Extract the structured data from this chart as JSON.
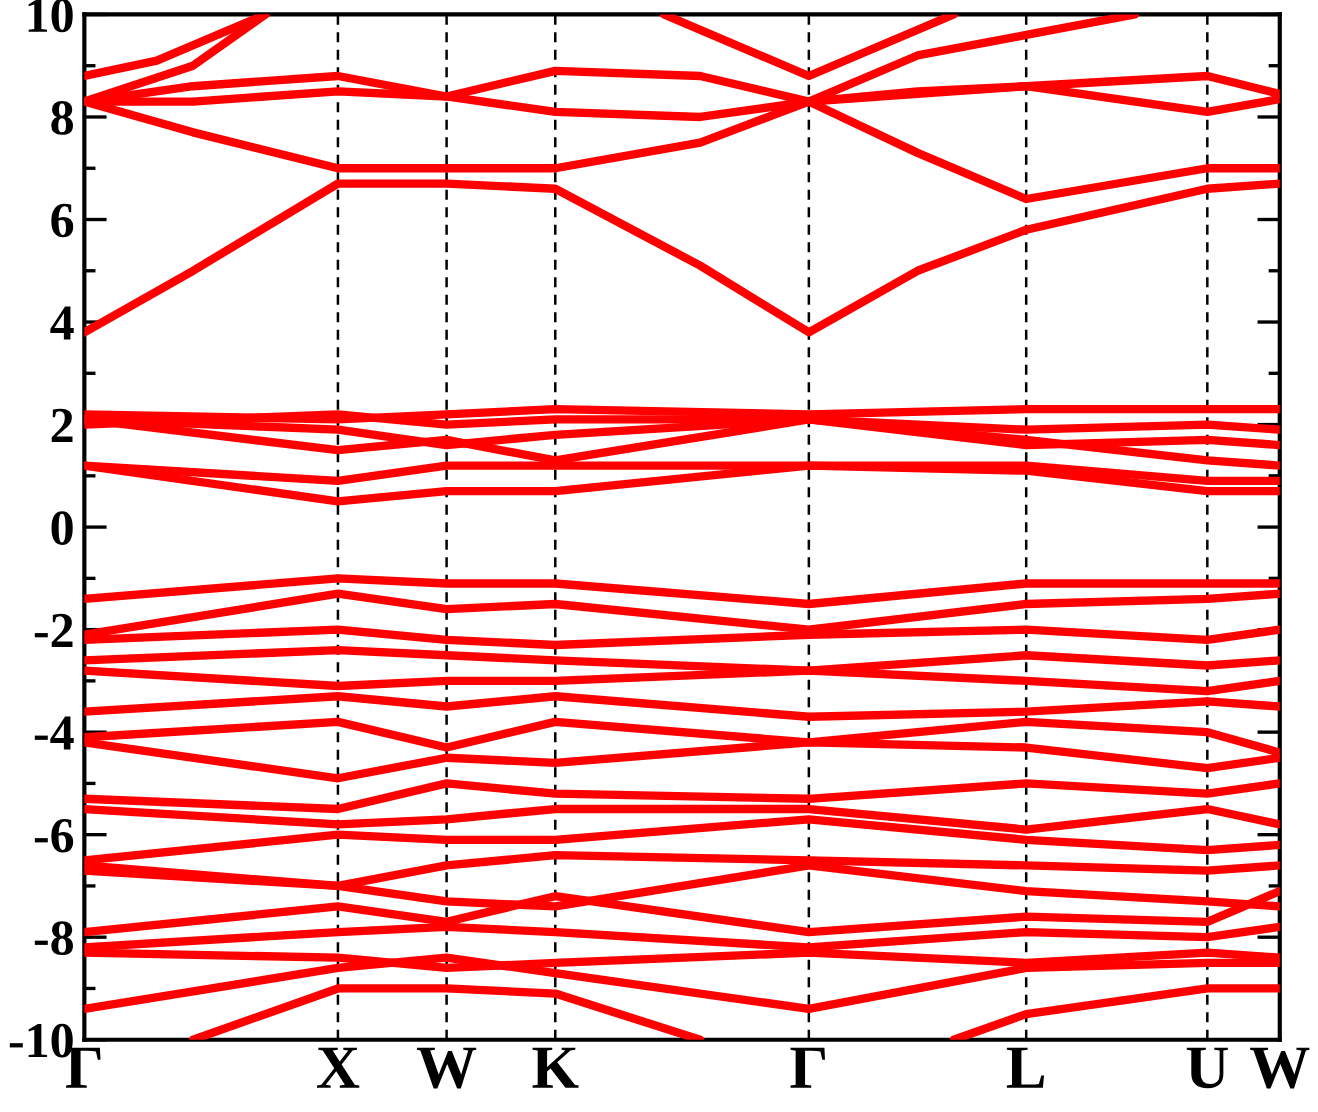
{
  "chart_data": {
    "type": "line",
    "categories": [
      "Γ",
      null,
      null,
      null,
      null,
      null,
      null,
      "X",
      null,
      null,
      "W",
      null,
      null,
      "K",
      null,
      null,
      null,
      null,
      null,
      null,
      "Γ",
      null,
      null,
      null,
      null,
      null,
      "L",
      null,
      null,
      null,
      null,
      "U",
      null,
      "W"
    ],
    "ylim": [
      -10,
      10
    ],
    "yticks": [
      -10,
      {
        "value": -9,
        "label": null
      },
      -8,
      {
        "value": -7,
        "label": null
      },
      -6,
      {
        "value": -5,
        "label": null
      },
      -4,
      {
        "value": -3,
        "label": null
      },
      -2,
      {
        "value": -1,
        "label": null
      },
      0,
      {
        "value": 1,
        "label": null
      },
      2,
      {
        "value": 3,
        "label": null
      },
      4,
      {
        "value": 5,
        "label": null
      },
      6,
      {
        "value": 7,
        "label": null
      },
      8,
      {
        "value": 9,
        "label": null
      },
      10
    ],
    "grid": "x",
    "line_style": "solid",
    "series": [
      {
        "color": "#ff0000",
        "values": [
          3.8,
          null,
          null,
          5.0,
          null,
          null,
          null,
          6.7,
          null,
          null,
          6.7,
          null,
          null,
          6.6,
          null,
          null,
          null,
          5.1,
          null,
          null,
          3.8,
          null,
          null,
          5.0,
          null,
          null,
          5.8,
          null,
          null,
          null,
          null,
          6.6,
          null,
          6.7
        ]
      },
      {
        "color": "#ff0000",
        "values": [
          8.3,
          null,
          null,
          7.7,
          null,
          null,
          null,
          7.0,
          null,
          null,
          7.0,
          null,
          null,
          7.0,
          null,
          null,
          null,
          7.5,
          null,
          null,
          8.3,
          null,
          null,
          7.3,
          null,
          null,
          6.4,
          null,
          null,
          null,
          null,
          7.0,
          null,
          7.0
        ]
      },
      {
        "color": "#ff0000",
        "values": [
          8.3,
          null,
          null,
          8.6,
          null,
          null,
          null,
          8.8,
          null,
          null,
          8.4,
          null,
          null,
          8.9,
          null,
          null,
          null,
          8.8,
          null,
          null,
          8.3,
          null,
          null,
          8.5,
          null,
          null,
          8.6,
          null,
          null,
          null,
          null,
          8.8,
          null,
          8.45
        ]
      },
      {
        "color": "#ff0000",
        "values": [
          8.3,
          null,
          null,
          8.3,
          null,
          null,
          null,
          8.5,
          null,
          null,
          8.4,
          null,
          null,
          8.1,
          null,
          null,
          null,
          8.0,
          null,
          null,
          8.3,
          null,
          null,
          8.45,
          null,
          null,
          8.6,
          null,
          null,
          null,
          null,
          8.1,
          null,
          8.35
        ]
      },
      {
        "color": "#ff0000",
        "values": [
          8.8,
          null,
          9.1,
          null,
          null,
          10,
          null,
          null,
          null,
          null,
          null,
          null,
          null,
          null,
          null,
          null,
          null,
          null,
          null,
          null,
          null,
          null,
          null,
          null,
          null,
          null,
          null,
          null,
          null,
          null,
          null,
          null,
          null,
          null
        ]
      },
      {
        "color": "#ff0000",
        "values": [
          8.3,
          null,
          null,
          9.0,
          null,
          10,
          null,
          null,
          null,
          null,
          null,
          null,
          null,
          null,
          null,
          null,
          null,
          null,
          null,
          null,
          null,
          null,
          null,
          null,
          null,
          null,
          null,
          null,
          null,
          null,
          null,
          null,
          null,
          null
        ]
      },
      {
        "color": "#ff0000",
        "values": [
          null,
          null,
          null,
          null,
          null,
          null,
          null,
          null,
          null,
          null,
          null,
          null,
          null,
          null,
          null,
          null,
          10,
          null,
          null,
          null,
          8.8,
          null,
          null,
          null,
          10,
          null,
          null,
          null,
          null,
          null,
          null,
          null,
          null,
          null
        ]
      },
      {
        "color": "#ff0000",
        "values": [
          null,
          null,
          null,
          null,
          null,
          null,
          null,
          null,
          null,
          null,
          null,
          null,
          null,
          null,
          null,
          null,
          null,
          null,
          null,
          null,
          8.3,
          null,
          null,
          9.2,
          null,
          null,
          9.6,
          null,
          null,
          10,
          null,
          null,
          null,
          null
        ]
      },
      {
        "color": "#ff0000",
        "values": [
          1.2,
          null,
          null,
          null,
          null,
          null,
          null,
          0.5,
          null,
          null,
          0.7,
          null,
          null,
          0.7,
          null,
          null,
          null,
          null,
          null,
          null,
          1.2,
          null,
          null,
          null,
          null,
          null,
          1.1,
          null,
          null,
          null,
          null,
          0.7,
          null,
          0.7
        ]
      },
      {
        "color": "#ff0000",
        "values": [
          1.2,
          null,
          null,
          null,
          null,
          null,
          null,
          0.9,
          null,
          null,
          1.2,
          null,
          null,
          1.2,
          null,
          null,
          null,
          null,
          null,
          null,
          1.2,
          null,
          null,
          null,
          null,
          null,
          1.2,
          null,
          null,
          null,
          null,
          0.9,
          null,
          0.9
        ]
      },
      {
        "color": "#ff0000",
        "values": [
          2.1,
          null,
          null,
          null,
          null,
          null,
          null,
          1.5,
          null,
          null,
          1.7,
          null,
          null,
          1.3,
          null,
          null,
          null,
          null,
          null,
          null,
          2.1,
          null,
          null,
          null,
          null,
          null,
          1.7,
          null,
          null,
          null,
          null,
          1.3,
          null,
          1.2
        ]
      },
      {
        "color": "#ff0000",
        "values": [
          2.1,
          null,
          null,
          null,
          null,
          null,
          null,
          1.9,
          null,
          null,
          1.6,
          null,
          null,
          1.8,
          null,
          null,
          null,
          null,
          null,
          null,
          2.1,
          null,
          null,
          null,
          null,
          null,
          1.6,
          null,
          null,
          null,
          null,
          1.7,
          null,
          1.6
        ]
      },
      {
        "color": "#ff0000",
        "values": [
          2.2,
          null,
          null,
          null,
          null,
          null,
          null,
          2.1,
          null,
          null,
          2.2,
          null,
          null,
          2.3,
          null,
          null,
          null,
          null,
          null,
          null,
          2.2,
          null,
          null,
          null,
          null,
          null,
          2.3,
          null,
          null,
          null,
          null,
          2.3,
          null,
          2.3
        ]
      },
      {
        "color": "#ff0000",
        "values": [
          2.0,
          null,
          null,
          null,
          null,
          null,
          null,
          2.2,
          null,
          null,
          2.0,
          null,
          null,
          2.1,
          null,
          null,
          null,
          null,
          null,
          null,
          2.1,
          null,
          null,
          null,
          null,
          null,
          1.9,
          null,
          null,
          null,
          null,
          2.0,
          null,
          1.9
        ]
      },
      {
        "color": "#ff0000",
        "values": [
          -1.4,
          null,
          null,
          null,
          null,
          null,
          null,
          -1.0,
          null,
          null,
          -1.1,
          null,
          null,
          -1.1,
          null,
          null,
          null,
          null,
          null,
          null,
          -1.5,
          null,
          null,
          null,
          null,
          null,
          -1.1,
          null,
          null,
          null,
          null,
          -1.1,
          null,
          -1.1
        ]
      },
      {
        "color": "#ff0000",
        "values": [
          -2.1,
          null,
          null,
          null,
          null,
          null,
          null,
          -1.3,
          null,
          null,
          -1.6,
          null,
          null,
          -1.5,
          null,
          null,
          null,
          null,
          null,
          null,
          -2.0,
          null,
          null,
          null,
          null,
          null,
          -1.5,
          null,
          null,
          null,
          null,
          -1.4,
          null,
          -1.3
        ]
      },
      {
        "color": "#ff0000",
        "values": [
          -2.2,
          null,
          null,
          null,
          null,
          null,
          null,
          -2.0,
          null,
          null,
          -2.2,
          null,
          null,
          -2.3,
          null,
          null,
          null,
          null,
          null,
          null,
          -2.1,
          null,
          null,
          null,
          null,
          null,
          -2.0,
          null,
          null,
          null,
          null,
          -2.2,
          null,
          -2.0
        ]
      },
      {
        "color": "#ff0000",
        "values": [
          -2.6,
          null,
          null,
          null,
          null,
          null,
          null,
          -2.4,
          null,
          null,
          -2.5,
          null,
          null,
          -2.6,
          null,
          null,
          null,
          null,
          null,
          null,
          -2.8,
          null,
          null,
          null,
          null,
          null,
          -2.5,
          null,
          null,
          null,
          null,
          -2.7,
          null,
          -2.6
        ]
      },
      {
        "color": "#ff0000",
        "values": [
          -2.8,
          null,
          null,
          null,
          null,
          null,
          null,
          -3.1,
          null,
          null,
          -3.0,
          null,
          null,
          -3.0,
          null,
          null,
          null,
          null,
          null,
          null,
          -2.8,
          null,
          null,
          null,
          null,
          null,
          -3.0,
          null,
          null,
          null,
          null,
          -3.2,
          null,
          -3.0
        ]
      },
      {
        "color": "#ff0000",
        "values": [
          -3.6,
          null,
          null,
          null,
          null,
          null,
          null,
          -3.3,
          null,
          null,
          -3.5,
          null,
          null,
          -3.3,
          null,
          null,
          null,
          null,
          null,
          null,
          -3.7,
          null,
          null,
          null,
          null,
          null,
          -3.6,
          null,
          null,
          null,
          null,
          -3.4,
          null,
          -3.5
        ]
      },
      {
        "color": "#ff0000",
        "values": [
          -4.1,
          null,
          null,
          null,
          null,
          null,
          null,
          -3.8,
          null,
          null,
          -4.3,
          null,
          null,
          -3.8,
          null,
          null,
          null,
          null,
          null,
          null,
          -4.2,
          null,
          null,
          null,
          null,
          null,
          -3.8,
          null,
          null,
          null,
          null,
          -4.0,
          null,
          -4.4
        ]
      },
      {
        "color": "#ff0000",
        "values": [
          -4.2,
          null,
          null,
          null,
          null,
          null,
          null,
          -4.9,
          null,
          null,
          -4.5,
          null,
          null,
          -4.6,
          null,
          null,
          null,
          null,
          null,
          null,
          -4.2,
          null,
          null,
          null,
          null,
          null,
          -4.3,
          null,
          null,
          null,
          null,
          -4.7,
          null,
          -4.5
        ]
      },
      {
        "color": "#ff0000",
        "values": [
          -5.3,
          null,
          null,
          null,
          null,
          null,
          null,
          -5.5,
          null,
          null,
          -5.0,
          null,
          null,
          -5.2,
          null,
          null,
          null,
          null,
          null,
          null,
          -5.3,
          null,
          null,
          null,
          null,
          null,
          -5.0,
          null,
          null,
          null,
          null,
          -5.2,
          null,
          -5.0
        ]
      },
      {
        "color": "#ff0000",
        "values": [
          -5.5,
          null,
          null,
          null,
          null,
          null,
          null,
          -5.8,
          null,
          null,
          -5.7,
          null,
          null,
          -5.5,
          null,
          null,
          null,
          null,
          null,
          null,
          -5.5,
          null,
          null,
          null,
          null,
          null,
          -5.9,
          null,
          null,
          null,
          null,
          -5.5,
          null,
          -5.8
        ]
      },
      {
        "color": "#ff0000",
        "values": [
          -6.5,
          null,
          null,
          null,
          null,
          null,
          null,
          -6.0,
          null,
          null,
          -6.1,
          null,
          null,
          -6.1,
          null,
          null,
          null,
          null,
          null,
          null,
          -5.7,
          null,
          null,
          null,
          null,
          null,
          -6.1,
          null,
          null,
          null,
          null,
          -6.3,
          null,
          -6.2
        ]
      },
      {
        "color": "#ff0000",
        "values": [
          -6.6,
          null,
          null,
          null,
          null,
          null,
          null,
          -7.0,
          null,
          null,
          -6.6,
          null,
          null,
          -6.4,
          null,
          null,
          null,
          null,
          null,
          null,
          -6.5,
          null,
          null,
          null,
          null,
          null,
          -6.6,
          null,
          null,
          null,
          null,
          -6.7,
          null,
          -6.6
        ]
      },
      {
        "color": "#ff0000",
        "values": [
          -6.7,
          null,
          null,
          null,
          null,
          null,
          null,
          -7.0,
          null,
          null,
          -7.3,
          null,
          null,
          -7.4,
          null,
          null,
          null,
          null,
          null,
          null,
          -6.6,
          null,
          null,
          null,
          null,
          null,
          -7.1,
          null,
          null,
          null,
          null,
          -7.3,
          null,
          -7.4
        ]
      },
      {
        "color": "#ff0000",
        "values": [
          -7.9,
          null,
          null,
          null,
          null,
          null,
          null,
          -7.4,
          null,
          null,
          -7.7,
          null,
          null,
          -7.2,
          null,
          null,
          null,
          null,
          null,
          null,
          -7.9,
          null,
          null,
          null,
          null,
          null,
          -7.6,
          null,
          null,
          null,
          null,
          -7.7,
          null,
          -7.1
        ]
      },
      {
        "color": "#ff0000",
        "values": [
          -8.2,
          null,
          null,
          null,
          null,
          null,
          null,
          -7.9,
          null,
          null,
          -7.8,
          null,
          null,
          -7.9,
          null,
          null,
          null,
          null,
          null,
          null,
          -8.2,
          null,
          null,
          null,
          null,
          null,
          -7.9,
          null,
          null,
          null,
          null,
          -8.0,
          null,
          -7.8
        ]
      },
      {
        "color": "#ff0000",
        "values": [
          -8.3,
          null,
          null,
          null,
          null,
          null,
          null,
          -8.4,
          null,
          null,
          -8.6,
          null,
          null,
          -8.5,
          null,
          null,
          null,
          null,
          null,
          null,
          -8.3,
          null,
          null,
          null,
          null,
          null,
          -8.5,
          null,
          null,
          null,
          null,
          -8.3,
          null,
          -8.4
        ]
      },
      {
        "color": "#ff0000",
        "values": [
          -9.4,
          null,
          null,
          null,
          null,
          null,
          null,
          -8.6,
          null,
          null,
          -8.4,
          null,
          null,
          -8.7,
          null,
          null,
          null,
          null,
          null,
          null,
          -9.4,
          null,
          null,
          null,
          null,
          null,
          -8.6,
          null,
          null,
          null,
          null,
          -8.5,
          null,
          -8.5
        ]
      },
      {
        "color": "#ff0000",
        "values": [
          null,
          null,
          null,
          -10,
          null,
          null,
          null,
          -9.0,
          null,
          null,
          -9.0,
          null,
          null,
          -9.1,
          null,
          null,
          null,
          -10,
          null,
          null,
          null,
          null,
          null,
          null,
          null,
          null,
          null,
          null,
          null,
          null,
          null,
          null,
          null,
          null
        ]
      },
      {
        "color": "#ff0000",
        "values": [
          null,
          null,
          null,
          null,
          null,
          null,
          null,
          null,
          null,
          null,
          null,
          null,
          null,
          null,
          null,
          null,
          null,
          null,
          null,
          null,
          null,
          null,
          null,
          null,
          -10,
          null,
          -9.5,
          null,
          null,
          null,
          null,
          -9.0,
          null,
          -9.0
        ]
      }
    ]
  }
}
